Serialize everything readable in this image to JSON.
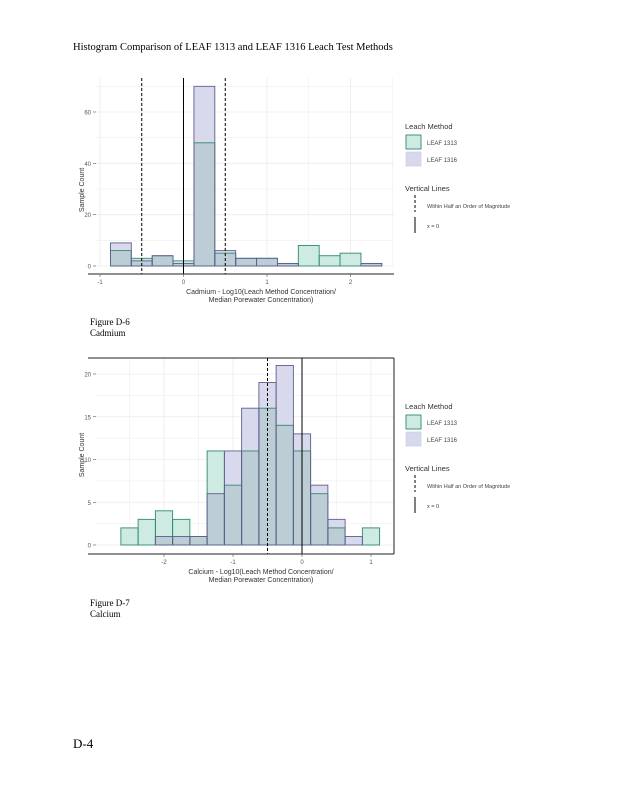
{
  "document": {
    "title": "Histogram Comparison of LEAF 1313 and LEAF 1316 Leach Test Methods",
    "page_number": "D-4"
  },
  "colors": {
    "leaf1313_fill": "#cdeae3",
    "leaf1313_stroke": "#2f8a6e",
    "leaf1316_fill": "#d9d9ee",
    "leaf1316_stroke": "#5f5f8e",
    "overlap_fill": "#bccdd6",
    "grid": "#ebebeb",
    "axis": "#333333"
  },
  "figures": [
    {
      "caption_line1": "Figure D-6",
      "caption_line2": "Cadmium"
    },
    {
      "caption_line1": "Figure D-7",
      "caption_line2": "Calcium"
    }
  ],
  "chart_data": [
    {
      "type": "bar",
      "subtype": "overlaid-histogram",
      "title": "",
      "xlabel_line1": "Cadmium - Log10(Leach Method Concentration/",
      "xlabel_line2": "Median Porewater Concentration)",
      "ylabel": "Sample Count",
      "xlim": [
        -1,
        2.5
      ],
      "ylim": [
        0,
        72
      ],
      "xticks": [
        -1,
        0,
        1,
        2
      ],
      "xtick_labels": [
        "-1",
        "0",
        "1",
        "2"
      ],
      "yticks": [
        0,
        20,
        40,
        60
      ],
      "ytick_labels": [
        "0",
        "20",
        "40",
        "60"
      ],
      "grid": true,
      "bin_width": 0.25,
      "bin_starts": [
        -0.875,
        -0.625,
        -0.375,
        -0.125,
        0.125,
        0.375,
        0.625,
        0.875,
        1.125,
        1.375,
        1.625,
        1.875,
        2.125
      ],
      "series": [
        {
          "name": "LEAF 1313",
          "values": [
            6,
            3,
            4,
            2,
            48,
            5,
            3,
            3,
            1,
            8,
            4,
            5,
            1
          ]
        },
        {
          "name": "LEAF 1316",
          "values": [
            9,
            2,
            4,
            1,
            70,
            6,
            3,
            3,
            1,
            0,
            0,
            0,
            1
          ]
        }
      ],
      "vlines": [
        {
          "x": -0.5,
          "style": "dashed"
        },
        {
          "x": 0.5,
          "style": "dashed"
        },
        {
          "x": 0,
          "style": "solid"
        }
      ],
      "legend": {
        "placement": "right",
        "fill_title": "Leach Method",
        "fill_items": [
          "LEAF 1313",
          "LEAF 1316"
        ],
        "line_title": "Vertical Lines",
        "line_items": [
          "Within Half an Order of Magnitude",
          "x = 0"
        ]
      }
    },
    {
      "type": "bar",
      "subtype": "overlaid-histogram",
      "title": "",
      "xlabel_line1": "Calcium - Log10(Leach Method Concentration/",
      "xlabel_line2": "Median Porewater Concentration)",
      "ylabel": "Sample Count",
      "xlim": [
        -2.7,
        1.3
      ],
      "ylim": [
        0,
        22
      ],
      "xticks": [
        -2,
        -1,
        0,
        1
      ],
      "xtick_labels": [
        "-2",
        "-1",
        "0",
        "1"
      ],
      "yticks": [
        0,
        5,
        10,
        15,
        20
      ],
      "ytick_labels": [
        "0",
        "5",
        "10",
        "15",
        "20"
      ],
      "grid": true,
      "bin_width": 0.25,
      "bin_starts": [
        -2.625,
        -2.375,
        -2.125,
        -1.875,
        -1.625,
        -1.375,
        -1.125,
        -0.875,
        -0.625,
        -0.375,
        -0.125,
        0.125,
        0.375,
        0.625,
        0.875
      ],
      "series": [
        {
          "name": "LEAF 1313",
          "values": [
            2,
            3,
            4,
            3,
            1,
            11,
            7,
            11,
            16,
            14,
            11,
            6,
            2,
            0,
            2
          ]
        },
        {
          "name": "LEAF 1316",
          "values": [
            0,
            0,
            1,
            1,
            1,
            6,
            11,
            16,
            19,
            21,
            13,
            7,
            3,
            1,
            0
          ]
        }
      ],
      "vlines": [
        {
          "x": -0.5,
          "style": "dashed"
        },
        {
          "x": 0,
          "style": "solid"
        }
      ],
      "legend": {
        "placement": "right",
        "fill_title": "Leach Method",
        "fill_items": [
          "LEAF 1313",
          "LEAF 1316"
        ],
        "line_title": "Vertical Lines",
        "line_items": [
          "Within Half an Order of Magnitude",
          "x = 0"
        ]
      }
    }
  ]
}
